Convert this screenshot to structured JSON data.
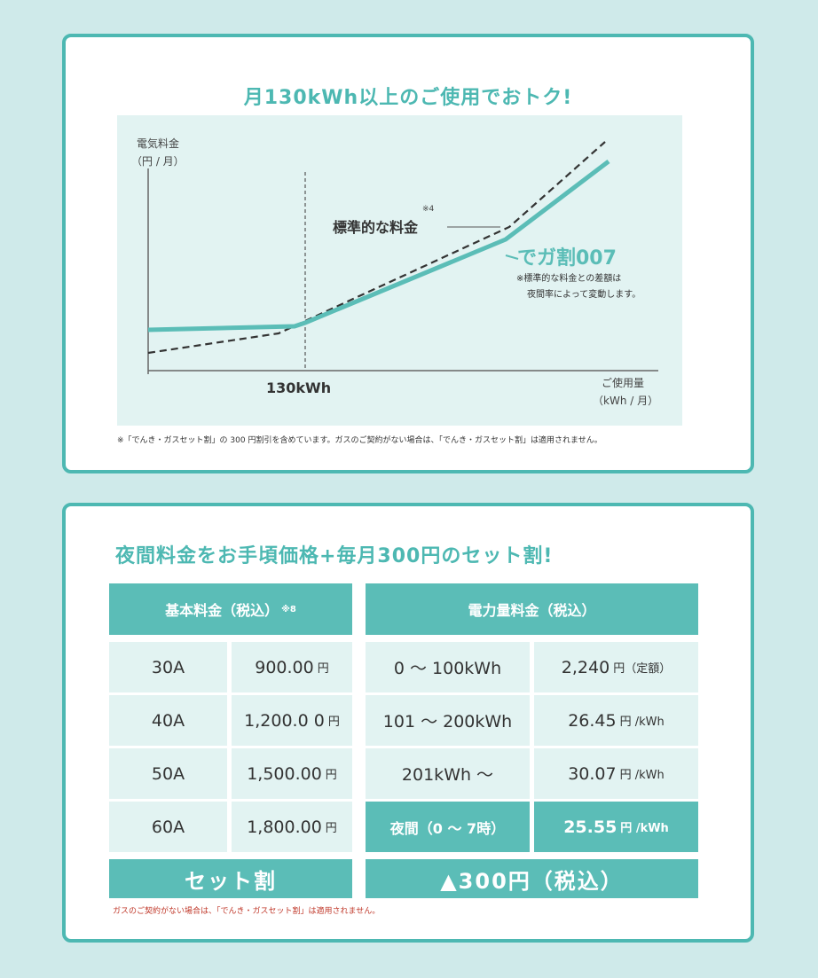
{
  "chart": {
    "title": "月130kWh以上のご使用でおトク!",
    "ylabel_line1": "電気料金",
    "ylabel_line2": "（円 / 月）",
    "xlabel_line1": "ご使用量",
    "xlabel_line2": "（kWh / 月）",
    "threshold_label": "130kWh",
    "standard_label": "標準的な料金",
    "standard_sup": "※4",
    "plan_label": "でガ割007",
    "plan_note_line1": "※標準的な料金との差額は",
    "plan_note_line2": "夜間率によって変動します。",
    "footnote": "※「でんき・ガスセット割」の 300 円割引を含めています。ガスのご契約がない場合は、「でんき・ガスセット割」は適用されません。",
    "colors": {
      "plan_line": "#5bbdb7",
      "standard_line": "#333333",
      "background": "#e2f3f2"
    }
  },
  "chart_data": {
    "type": "line",
    "title": "月130kWh以上のご使用でおトク!",
    "xlabel": "ご使用量（kWh / 月）",
    "ylabel": "電気料金（円 / 月）",
    "x_ticks": [
      "130kWh"
    ],
    "series": [
      {
        "name": "標準的な料金",
        "style": "dashed",
        "points": [
          [
            0,
            2
          ],
          [
            0.26,
            3
          ],
          [
            0.3,
            3.7
          ],
          [
            0.72,
            12.5
          ],
          [
            0.89,
            19.5
          ]
        ]
      },
      {
        "name": "でガ割007",
        "style": "solid",
        "points": [
          [
            0,
            3.4
          ],
          [
            0.3,
            3.7
          ],
          [
            0.7,
            11.4
          ],
          [
            0.9,
            18.3
          ]
        ]
      }
    ],
    "grid": false
  },
  "pricing": {
    "title": "夜間料金をお手頃価格+毎月300円のセット割!",
    "basic_header": "基本料金（税込）",
    "basic_header_sup": "※8",
    "energy_header": "電力量料金（税込）",
    "basic_rows": [
      {
        "amp": "30A",
        "price": "900.00",
        "unit": "円"
      },
      {
        "amp": "40A",
        "price": "1,200.0 0",
        "unit": "円"
      },
      {
        "amp": "50A",
        "price": "1,500.00",
        "unit": "円"
      },
      {
        "amp": "60A",
        "price": "1,800.00",
        "unit": "円"
      }
    ],
    "energy_rows": [
      {
        "range": "0 ～ 100kWh",
        "price": "2,240",
        "unit": "円（定額）"
      },
      {
        "range": "101 ～ 200kWh",
        "price": "26.45",
        "unit": "円 /kWh"
      },
      {
        "range": "201kWh ～",
        "price": "30.07",
        "unit": "円 /kWh"
      },
      {
        "range": "夜間（0 ～ 7時）",
        "price": "25.55",
        "unit": "円 /kWh"
      }
    ],
    "set_label": "セット割",
    "set_value": "▲300円（税込）",
    "footnote": "ガスのご契約がない場合は、「でんき・ガスセット割」は適用されません。",
    "accent": "#5bbdb7"
  }
}
